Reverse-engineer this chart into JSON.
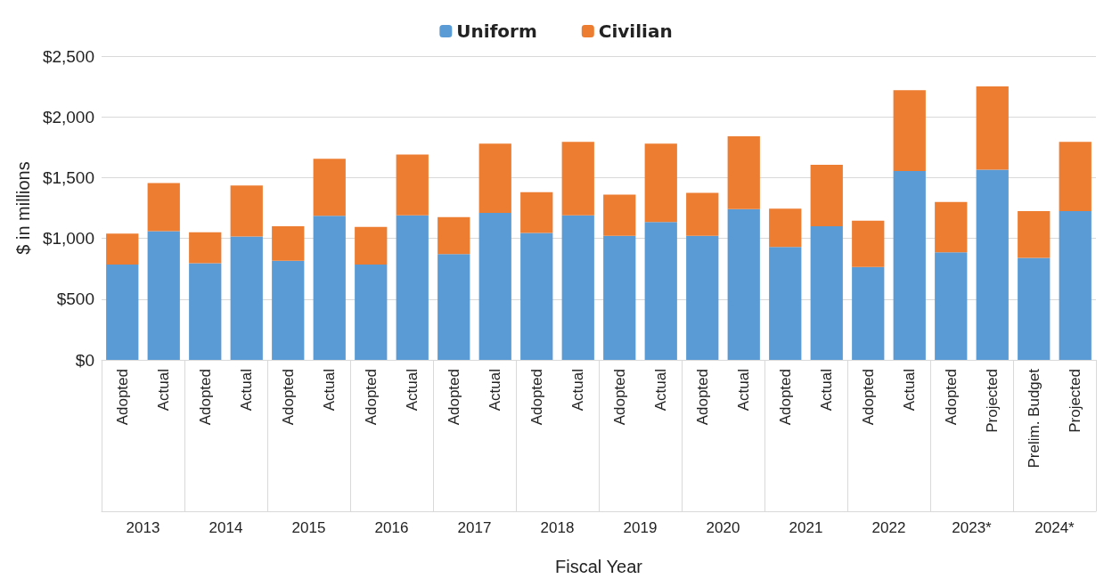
{
  "chart_data": {
    "type": "bar",
    "stacked": true,
    "xlabel": "Fiscal Year",
    "ylabel": "$ in millions",
    "categories": [
      "Adopted",
      "Actual",
      "Adopted",
      "Actual",
      "Adopted",
      "Actual",
      "Adopted",
      "Actual",
      "Adopted",
      "Actual",
      "Adopted",
      "Actual",
      "Adopted",
      "Actual",
      "Adopted",
      "Actual",
      "Adopted",
      "Actual",
      "Adopted",
      "Actual",
      "Adopted",
      "Projected",
      "Prelim. Budget",
      "Projected"
    ],
    "annotations": [
      "2013",
      "2014",
      "2015",
      "2016",
      "2017",
      "2018",
      "2019",
      "2020",
      "2021",
      "2022",
      "2023*",
      "2024*"
    ],
    "series": [
      {
        "name": "Uniform",
        "color": "#5b9bd5",
        "values": [
          785,
          1060,
          795,
          1015,
          815,
          1185,
          785,
          1190,
          870,
          1210,
          1045,
          1190,
          1020,
          1135,
          1020,
          1240,
          930,
          1100,
          765,
          1555,
          885,
          1565,
          840,
          1225
        ]
      },
      {
        "name": "Civilian",
        "color": "#ed7d31",
        "values": [
          255,
          395,
          255,
          420,
          285,
          470,
          310,
          500,
          305,
          570,
          335,
          605,
          340,
          645,
          355,
          600,
          315,
          505,
          380,
          665,
          415,
          685,
          385,
          570
        ]
      }
    ],
    "ylim": [
      0,
      2500
    ],
    "yticks": [
      {
        "value": 0,
        "label": "$0"
      },
      {
        "value": 500,
        "label": "$500"
      },
      {
        "value": 1000,
        "label": "$1,000"
      },
      {
        "value": 1500,
        "label": "$1,500"
      },
      {
        "value": 2000,
        "label": "$2,000"
      },
      {
        "value": 2500,
        "label": "$2,500"
      }
    ],
    "grid": "y",
    "legend": "top"
  }
}
